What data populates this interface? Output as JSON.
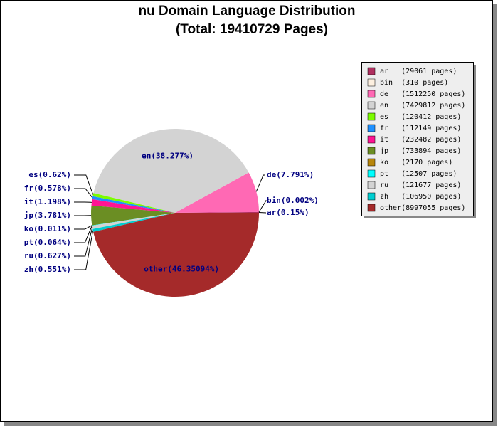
{
  "chart_data": {
    "type": "pie",
    "title": "nu Domain Language Distribution",
    "subtitle": "(Total: 19410729 Pages)",
    "categories": [
      "ar",
      "bin",
      "de",
      "en",
      "es",
      "fr",
      "it",
      "jp",
      "ko",
      "pt",
      "ru",
      "zh",
      "other"
    ],
    "values": [
      0.15,
      0.002,
      7.791,
      38.277,
      0.62,
      0.578,
      1.198,
      3.781,
      0.011,
      0.064,
      0.627,
      0.551,
      46.35094
    ],
    "value_labels": [
      "ar(0.15%)",
      "bin(0.002%)",
      "de(7.791%)",
      "en(38.277%)",
      "es(0.62%)",
      "fr(0.578%)",
      "it(1.198%)",
      "jp(3.781%)",
      "ko(0.011%)",
      "pt(0.064%)",
      "ru(0.627%)",
      "zh(0.551%)",
      "other(46.35094%)"
    ],
    "colors": [
      "#b03060",
      "#fdf0e0",
      "#ff69b4",
      "#d3d3d3",
      "#7cfc00",
      "#1e90ff",
      "#ff1493",
      "#6b8e23",
      "#b8860b",
      "#00ffff",
      "#d3d3d3",
      "#00ced1",
      "#a52a2a"
    ],
    "legend_labels": [
      "ar   (29061 pages)",
      "bin  (310 pages)",
      "de   (1512250 pages)",
      "en   (7429812 pages)",
      "es   (120412 pages)",
      "fr   (112149 pages)",
      "it   (232482 pages)",
      "jp   (733894 pages)",
      "ko   (2170 pages)",
      "pt   (12507 pages)",
      "ru   (121677 pages)",
      "zh   (106950 pages)",
      "other(8997055 pages)"
    ],
    "legend_position": "upper right"
  }
}
